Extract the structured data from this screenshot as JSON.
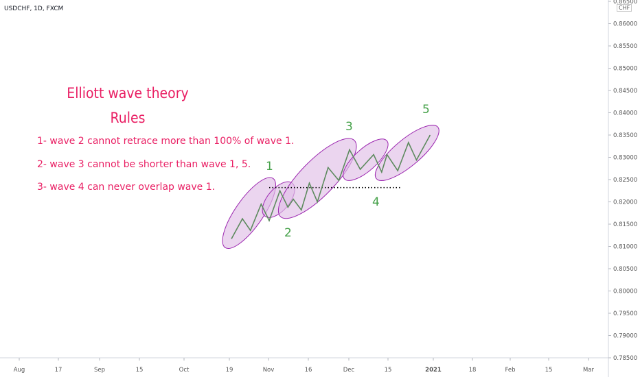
{
  "symbol_label": "USDCHF, 1D, FXCM",
  "currency": "CHF",
  "annotations": {
    "title": "Elliott wave theory",
    "subtitle": "Rules",
    "rules": [
      "1- wave 2 cannot retrace more than 100% of wave 1.",
      "2- wave 3 cannot be shorter than wave 1, 5.",
      "3- wave 4 can never overlap wave 1."
    ],
    "wave_labels": [
      "1",
      "2",
      "3",
      "4",
      "5"
    ]
  },
  "colors": {
    "line": "#5d8a5e",
    "ellipse_fill": "#e1bee7",
    "ellipse_stroke": "#9c27b0",
    "text_rules": "#e91e63",
    "wave_label": "#43a047",
    "dotted_level": "#000000"
  },
  "chart_data": {
    "type": "line",
    "y_axis": {
      "ticks": [
        "0.86500",
        "0.86000",
        "0.85500",
        "0.85000",
        "0.84500",
        "0.84000",
        "0.83500",
        "0.83000",
        "0.82500",
        "0.82000",
        "0.81500",
        "0.81000",
        "0.80500",
        "0.80000",
        "0.79500",
        "0.79000",
        "0.78500"
      ],
      "range": [
        0.785,
        0.865
      ]
    },
    "x_axis": {
      "ticks": [
        "Aug",
        "17",
        "Sep",
        "15",
        "Oct",
        "19",
        "Nov",
        "16",
        "Dec",
        "15",
        "2021",
        "18",
        "Feb",
        "15",
        "Mar"
      ]
    },
    "series": [
      {
        "points": [
          {
            "x": "2020-10-18",
            "y": 0.8118
          },
          {
            "x": "2020-10-22",
            "y": 0.8162
          },
          {
            "x": "2020-10-25",
            "y": 0.8136
          },
          {
            "x": "2020-10-29",
            "y": 0.8195
          },
          {
            "x": "2020-11-01",
            "y": 0.8158
          },
          {
            "x": "2020-11-05",
            "y": 0.8225
          },
          {
            "x": "2020-11-08",
            "y": 0.8188
          },
          {
            "x": "2020-11-10",
            "y": 0.8206
          },
          {
            "x": "2020-11-13",
            "y": 0.8182
          },
          {
            "x": "2020-11-16",
            "y": 0.8242
          },
          {
            "x": "2020-11-19",
            "y": 0.82
          },
          {
            "x": "2020-11-23",
            "y": 0.8277
          },
          {
            "x": "2020-11-27",
            "y": 0.8248
          },
          {
            "x": "2020-12-01",
            "y": 0.8317
          },
          {
            "x": "2020-12-05",
            "y": 0.8273
          },
          {
            "x": "2020-12-10",
            "y": 0.8306
          },
          {
            "x": "2020-12-13",
            "y": 0.8267
          },
          {
            "x": "2020-12-15",
            "y": 0.8306
          },
          {
            "x": "2020-12-19",
            "y": 0.827
          },
          {
            "x": "2020-12-23",
            "y": 0.8333
          },
          {
            "x": "2020-12-26",
            "y": 0.8294
          },
          {
            "x": "2020-12-31",
            "y": 0.8349
          }
        ]
      }
    ],
    "dotted_level": {
      "y": 0.8232,
      "x_start": "2020-11-01",
      "x_end": "2020-12-20"
    },
    "wave_ellipses": [
      {
        "wave": "1",
        "x_start": "2020-10-17",
        "x_end": "2020-11-01",
        "y_low": 0.811,
        "y_high": 0.824
      },
      {
        "wave": "2",
        "x_start": "2020-11-01",
        "x_end": "2020-11-08",
        "y_low": 0.818,
        "y_high": 0.823
      },
      {
        "wave": "3",
        "x_start": "2020-11-07",
        "x_end": "2020-12-01",
        "y_low": 0.8178,
        "y_high": 0.8327
      },
      {
        "wave": "4",
        "x_start": "2020-12-01",
        "x_end": "2020-12-13",
        "y_low": 0.8262,
        "y_high": 0.8327
      },
      {
        "wave": "5",
        "x_start": "2020-12-13",
        "x_end": "2021-01-01",
        "y_low": 0.8262,
        "y_high": 0.8358
      }
    ],
    "grid": false
  }
}
